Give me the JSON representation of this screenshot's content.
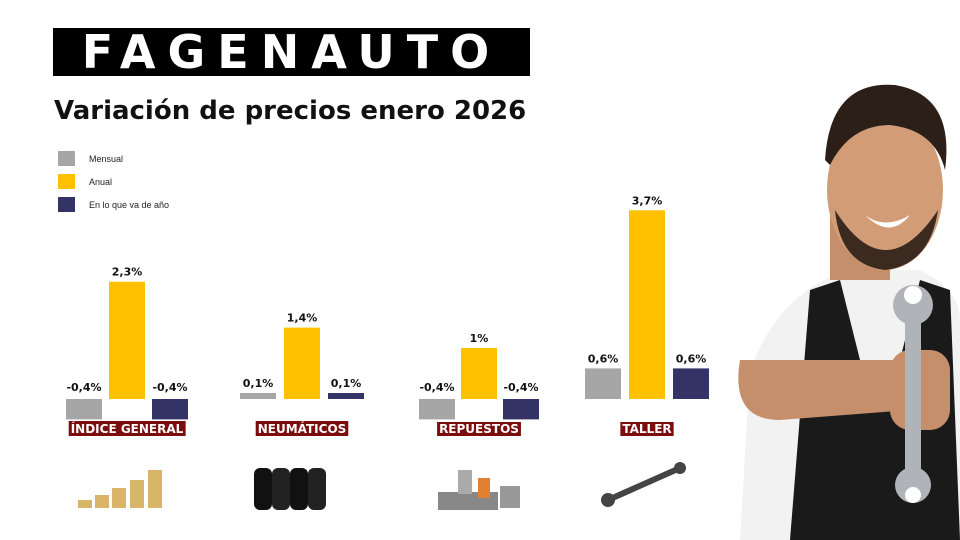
{
  "logo": "FAGENAUTO",
  "title": "Variación de precios enero 2026",
  "chart_data": {
    "type": "bar",
    "categories": [
      "ÍNDICE GENERAL",
      "NEUMÁTICOS",
      "REPUESTOS",
      "TALLER"
    ],
    "series": [
      {
        "name": "Mensual",
        "color": "#a6a6a6",
        "values": [
          -0.4,
          0.1,
          -0.4,
          0.6
        ],
        "labels": [
          "-0,4%",
          "0,1%",
          "-0,4%",
          "0,6%"
        ]
      },
      {
        "name": "Anual",
        "color": "#ffc000",
        "values": [
          2.3,
          1.4,
          1.0,
          3.7
        ],
        "labels": [
          "2,3%",
          "1,4%",
          "1%",
          "3,7%"
        ]
      },
      {
        "name": "En lo que va de año",
        "color": "#333366",
        "values": [
          -0.4,
          0.1,
          -0.4,
          0.6
        ],
        "labels": [
          "-0,4%",
          "0,1%",
          "-0,4%",
          "0,6%"
        ]
      }
    ],
    "legend": "top-left",
    "category_label_bg": "#7b0d0d",
    "grid": false
  },
  "icons": [
    "coins-icon",
    "tires-icon",
    "car-parts-icon",
    "wrench-icon"
  ]
}
